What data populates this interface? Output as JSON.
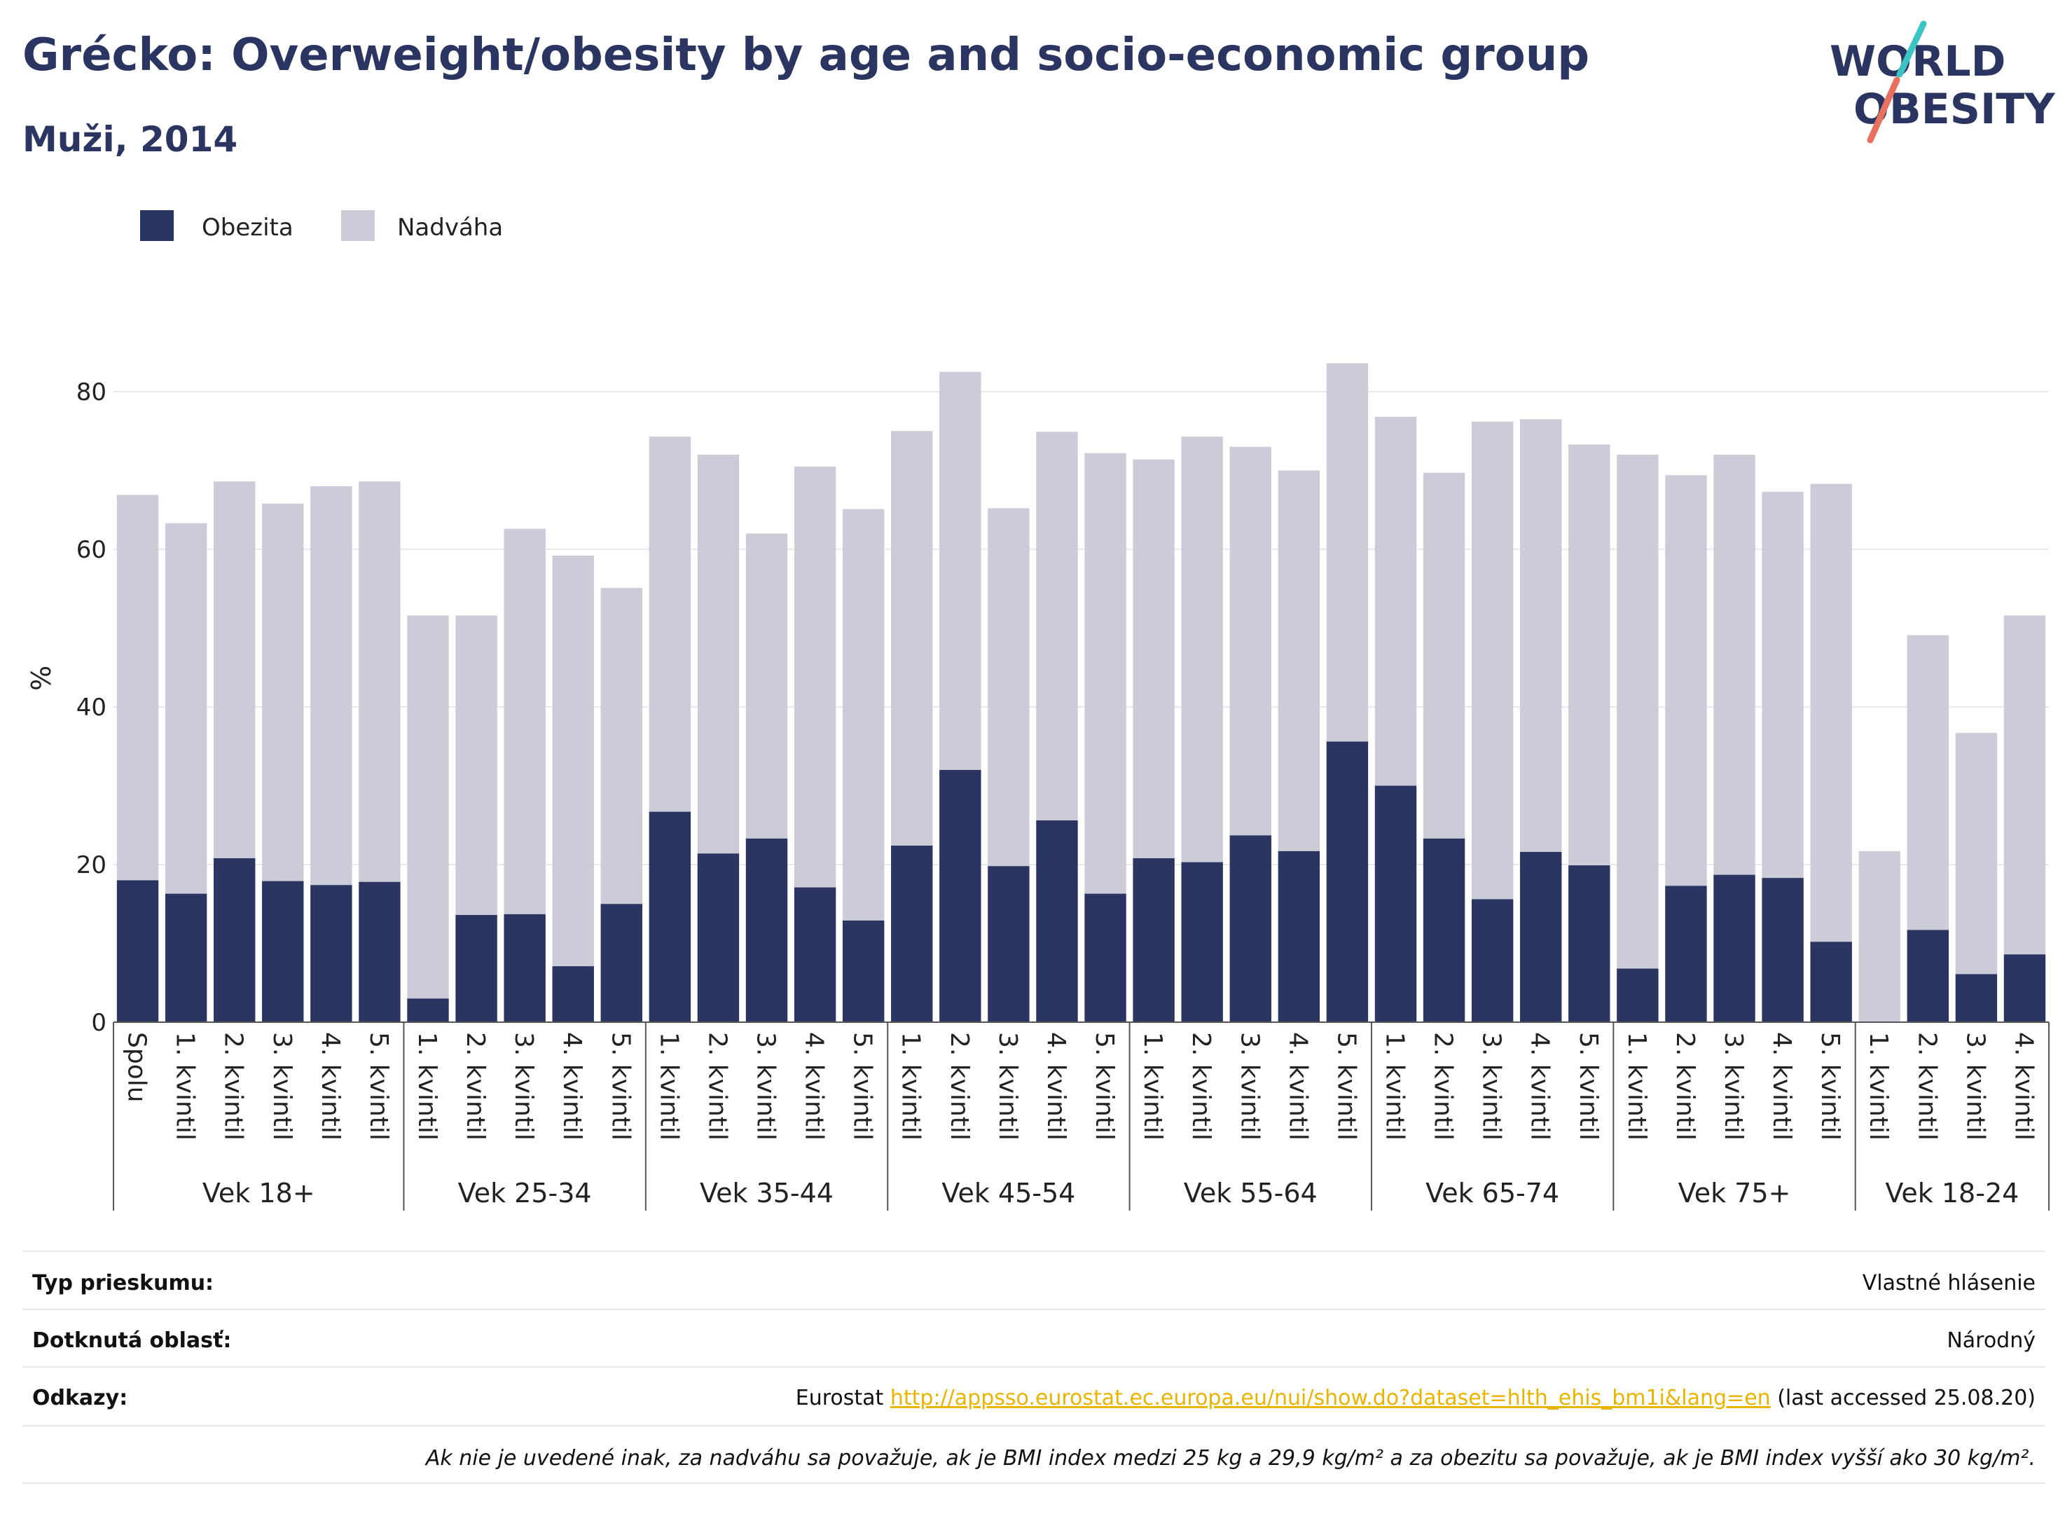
{
  "title": "Grécko: Overweight/obesity by age and socio-economic group",
  "subtitle": "Muži, 2014",
  "logo": {
    "line1": "WORLD",
    "line2": "OBESITY"
  },
  "colors": {
    "obesity": "#2b3561",
    "overweight": "#cbccd8",
    "title": "#2b3561",
    "link": "#e9b400",
    "logo_teal": "#3cc4c4",
    "logo_coral": "#e8705e"
  },
  "chart_data": {
    "type": "bar",
    "stacked": true,
    "ylabel": "%",
    "ylim": [
      0,
      90
    ],
    "yticks": [
      0,
      20,
      40,
      60,
      80
    ],
    "grid": true,
    "legend_position": "top-left",
    "legend": [
      "Obezita",
      "Nadváha"
    ],
    "groups": [
      {
        "name": "Vek 18+",
        "categories": [
          "Spolu",
          "1. kvintil",
          "2. kvintil",
          "3. kvintil",
          "4. kvintil",
          "5. kvintil"
        ]
      },
      {
        "name": "Vek 25-34",
        "categories": [
          "1. kvintil",
          "2. kvintil",
          "3. kvintil",
          "4. kvintil",
          "5. kvintil"
        ]
      },
      {
        "name": "Vek 35-44",
        "categories": [
          "1. kvintil",
          "2. kvintil",
          "3. kvintil",
          "4. kvintil",
          "5. kvintil"
        ]
      },
      {
        "name": "Vek 45-54",
        "categories": [
          "1. kvintil",
          "2. kvintil",
          "3. kvintil",
          "4. kvintil",
          "5. kvintil"
        ]
      },
      {
        "name": "Vek 55-64",
        "categories": [
          "1. kvintil",
          "2. kvintil",
          "3. kvintil",
          "4. kvintil",
          "5. kvintil"
        ]
      },
      {
        "name": "Vek 65-74",
        "categories": [
          "1. kvintil",
          "2. kvintil",
          "3. kvintil",
          "4. kvintil",
          "5. kvintil"
        ]
      },
      {
        "name": "Vek 75+",
        "categories": [
          "1. kvintil",
          "2. kvintil",
          "3. kvintil",
          "4. kvintil",
          "5. kvintil"
        ]
      },
      {
        "name": "Vek 18-24",
        "categories": [
          "1. kvintil",
          "2. kvintil",
          "3. kvintil",
          "4. kvintil"
        ]
      }
    ],
    "series": [
      {
        "name": "Obezita",
        "values": [
          18.0,
          16.3,
          20.8,
          17.9,
          17.4,
          17.8,
          3.0,
          13.6,
          13.7,
          7.1,
          15.0,
          26.7,
          21.4,
          23.3,
          17.1,
          12.9,
          22.4,
          32.0,
          19.8,
          25.6,
          16.3,
          20.8,
          20.3,
          23.7,
          21.7,
          35.6,
          30.0,
          23.3,
          15.6,
          21.6,
          19.9,
          6.8,
          17.3,
          18.7,
          18.3,
          10.2,
          0.0,
          11.7,
          6.1,
          8.6
        ]
      },
      {
        "name": "Nadváha",
        "values": [
          48.9,
          47.0,
          47.8,
          47.9,
          50.6,
          50.8,
          48.6,
          38.0,
          48.9,
          52.1,
          40.1,
          47.6,
          50.6,
          38.7,
          53.4,
          52.2,
          52.6,
          50.5,
          45.4,
          49.3,
          55.9,
          50.6,
          54.0,
          49.3,
          48.3,
          48.0,
          46.8,
          46.4,
          60.6,
          54.9,
          53.4,
          65.2,
          52.1,
          53.3,
          49.0,
          58.1,
          21.7,
          37.4,
          30.6,
          43.0
        ]
      }
    ]
  },
  "info": {
    "survey_type_label": "Typ prieskumu:",
    "survey_type_value": "Vlastné hlásenie",
    "area_label": "Dotknutá oblasť:",
    "area_value": "Národný",
    "refs_label": "Odkazy:",
    "refs_prefix": "Eurostat",
    "refs_link": "http://appsso.eurostat.ec.europa.eu/nui/show.do?dataset=hlth_ehis_bm1i&lang=en",
    "refs_suffix": "(last accessed 25.08.20)",
    "note": "Ak nie je uvedené inak, za nadváhu sa považuje, ak je BMI index medzi 25 kg a 29,9 kg/m² a za obezitu sa považuje, ak je BMI index vyšší ako 30 kg/m²."
  }
}
